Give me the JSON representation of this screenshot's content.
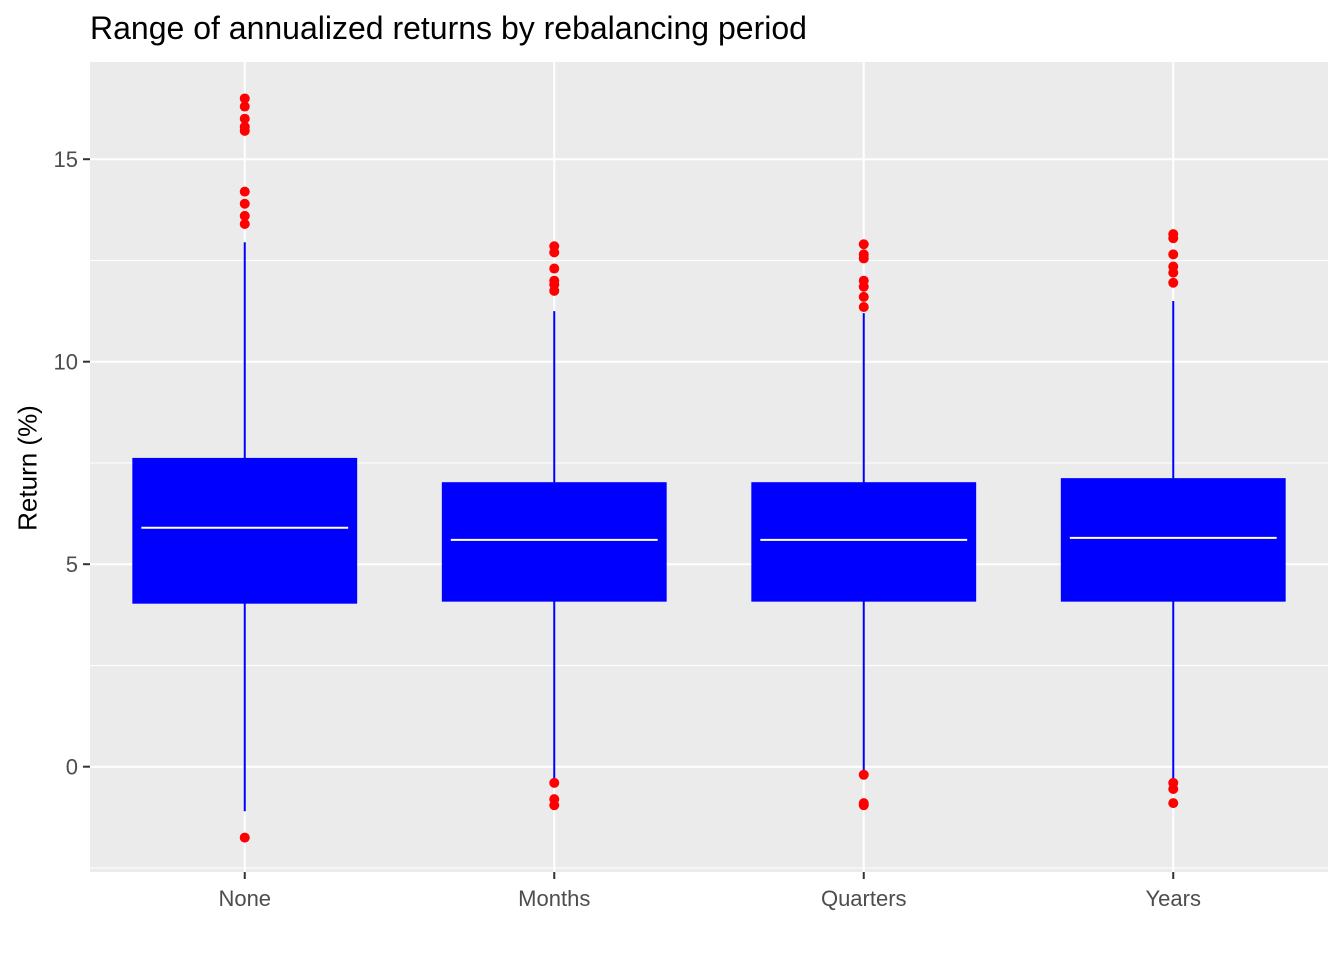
{
  "chart_data": {
    "type": "boxplot",
    "title": "Range of annualized returns by rebalancing period",
    "xlabel": "",
    "ylabel": "Return (%)",
    "categories": [
      "None",
      "Months",
      "Quarters",
      "Years"
    ],
    "ylim": [
      -2.6,
      17.4
    ],
    "yticks": [
      0,
      5,
      10,
      15
    ],
    "grid": true,
    "box_color": "#0000ff",
    "median_color": "#ffffff",
    "outlier_color": "#ff0000",
    "panel_color": "#ebebeb",
    "grid_color": "#ffffff",
    "boxes": [
      {
        "category": "None",
        "q1": 4.05,
        "median": 5.9,
        "q3": 7.6,
        "whisker_low": -1.1,
        "whisker_high": 12.95,
        "outliers": [
          16.5,
          16.3,
          16.0,
          15.8,
          15.7,
          14.2,
          13.9,
          13.6,
          13.4,
          -1.75
        ]
      },
      {
        "category": "Months",
        "q1": 4.1,
        "median": 5.6,
        "q3": 7.0,
        "whisker_low": -0.3,
        "whisker_high": 11.25,
        "outliers": [
          12.85,
          12.7,
          12.3,
          12.0,
          11.9,
          11.75,
          -0.4,
          -0.8,
          -0.95
        ]
      },
      {
        "category": "Quarters",
        "q1": 4.1,
        "median": 5.6,
        "q3": 7.0,
        "whisker_low": -0.1,
        "whisker_high": 11.2,
        "outliers": [
          12.9,
          12.65,
          12.55,
          12.0,
          11.85,
          11.6,
          11.35,
          -0.2,
          -0.9,
          -0.95
        ]
      },
      {
        "category": "Years",
        "q1": 4.1,
        "median": 5.65,
        "q3": 7.1,
        "whisker_low": -0.3,
        "whisker_high": 11.5,
        "outliers": [
          13.15,
          13.05,
          12.65,
          12.35,
          12.2,
          11.95,
          -0.4,
          -0.55,
          -0.9
        ]
      }
    ]
  }
}
